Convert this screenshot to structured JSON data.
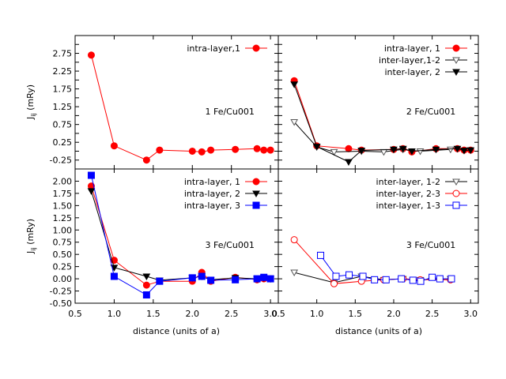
{
  "figure": {
    "xlabel": "distance (units of a)",
    "ylabel_main": "J",
    "ylabel_sub": "ij",
    "ylabel_units": " (mRy)"
  },
  "chart_data": [
    {
      "type": "line",
      "panel": "top-left",
      "annotation": "1 Fe/Cu001",
      "xlim": [
        0.5,
        3.1
      ],
      "ylim": [
        -0.5,
        3.25
      ],
      "yticks": [
        "2.75",
        "2.25",
        "1.75",
        "1.25",
        "0.75",
        "0.25",
        "-0.25"
      ],
      "series": [
        {
          "name": "intra-layer,1",
          "color": "#ff0000",
          "marker": "circle-filled",
          "x": [
            0.707,
            1.0,
            1.414,
            1.581,
            2.0,
            2.121,
            2.236,
            2.55,
            2.828,
            2.915,
            3.0
          ],
          "y": [
            2.7,
            0.15,
            -0.25,
            0.03,
            0.0,
            -0.02,
            0.03,
            0.05,
            0.07,
            0.03,
            0.03
          ]
        }
      ]
    },
    {
      "type": "line",
      "panel": "top-right",
      "annotation": "2 Fe/Cu001",
      "xlim": [
        0.5,
        3.1
      ],
      "ylim": [
        -0.5,
        3.25
      ],
      "series": [
        {
          "name": "intra-layer, 1",
          "color": "#ff0000",
          "marker": "circle-filled",
          "x": [
            0.707,
            1.0,
            1.414,
            1.581,
            2.0,
            2.121,
            2.236,
            2.55,
            2.828,
            2.915,
            3.0
          ],
          "y": [
            1.98,
            0.15,
            0.07,
            0.03,
            0.05,
            0.07,
            -0.02,
            0.07,
            0.07,
            0.03,
            0.03
          ]
        },
        {
          "name": "inter-layer,1-2",
          "color": "#000000",
          "marker": "triangle-down-open",
          "x": [
            0.707,
            1.0,
            1.225,
            1.581,
            1.871,
            2.121,
            2.345,
            2.739
          ],
          "y": [
            0.82,
            0.12,
            -0.02,
            0.0,
            -0.02,
            0.05,
            0.0,
            0.05
          ]
        },
        {
          "name": "inter-layer, 2",
          "color": "#000000",
          "marker": "triangle-down-filled",
          "x": [
            0.707,
            1.0,
            1.414,
            1.581,
            2.0,
            2.121,
            2.236,
            2.55,
            2.828,
            2.915,
            3.0
          ],
          "y": [
            1.88,
            0.13,
            -0.3,
            0.02,
            0.05,
            0.07,
            0.0,
            0.05,
            0.07,
            0.02,
            0.03
          ]
        }
      ]
    },
    {
      "type": "line",
      "panel": "bottom-left",
      "annotation": "3 Fe/Cu001",
      "xlim": [
        0.5,
        3.1
      ],
      "ylim": [
        -0.5,
        2.25
      ],
      "xticks": [
        "0.5",
        "1.0",
        "1.5",
        "2.0",
        "2.5",
        "3.0"
      ],
      "yticks": [
        "2.00",
        "1.75",
        "1.50",
        "1.25",
        "1.00",
        "0.75",
        "0.50",
        "0.25",
        "0.00",
        "-0.25",
        "-0.50"
      ],
      "series": [
        {
          "name": "intra-layer, 1",
          "color": "#ff0000",
          "marker": "circle-filled",
          "x": [
            0.707,
            1.0,
            1.414,
            1.581,
            2.0,
            2.121,
            2.236,
            2.55,
            2.828,
            2.915,
            3.0
          ],
          "y": [
            1.9,
            0.38,
            -0.13,
            -0.05,
            -0.05,
            0.13,
            -0.05,
            0.03,
            -0.02,
            0.0,
            0.0
          ]
        },
        {
          "name": "intra-layer, 2",
          "color": "#000000",
          "marker": "triangle-down-filled",
          "x": [
            0.707,
            1.0,
            1.414,
            1.581,
            2.0,
            2.121,
            2.236,
            2.55,
            2.828,
            2.915,
            3.0
          ],
          "y": [
            1.8,
            0.23,
            0.05,
            -0.03,
            0.02,
            0.05,
            -0.02,
            0.02,
            0.0,
            0.02,
            0.0
          ]
        },
        {
          "name": "intra-layer, 3",
          "color": "#0000ff",
          "marker": "square-filled",
          "x": [
            0.707,
            1.0,
            1.414,
            1.581,
            2.0,
            2.121,
            2.236,
            2.55,
            2.828,
            2.915,
            3.0
          ],
          "y": [
            2.12,
            0.05,
            -0.33,
            -0.05,
            0.02,
            0.05,
            -0.03,
            -0.02,
            0.0,
            0.03,
            0.0
          ]
        }
      ]
    },
    {
      "type": "line",
      "panel": "bottom-right",
      "annotation": "3 Fe/Cu001",
      "xlim": [
        0.5,
        3.1
      ],
      "ylim": [
        -0.5,
        2.25
      ],
      "xticks": [
        "0.5",
        "1.0",
        "1.5",
        "2.0",
        "2.5",
        "3.0"
      ],
      "series": [
        {
          "name": "inter-layer, 1-2",
          "color": "#000000",
          "marker": "triangle-down-open",
          "x": [
            0.707,
            1.225,
            1.581,
            1.871,
            2.121,
            2.345,
            2.739
          ],
          "y": [
            0.13,
            -0.08,
            0.05,
            -0.02,
            0.0,
            -0.02,
            0.0
          ]
        },
        {
          "name": "inter-layer, 2-3",
          "color": "#ff0000",
          "marker": "circle-open",
          "x": [
            0.707,
            1.225,
            1.581,
            1.871,
            2.121,
            2.345,
            2.739
          ],
          "y": [
            0.8,
            -0.1,
            -0.05,
            -0.02,
            0.0,
            -0.02,
            -0.02
          ]
        },
        {
          "name": "inter-layer, 1-3",
          "color": "#0000ff",
          "marker": "square-open",
          "x": [
            1.05,
            1.25,
            1.42,
            1.6,
            1.75,
            1.9,
            2.1,
            2.25,
            2.35,
            2.5,
            2.6,
            2.75
          ],
          "y": [
            0.48,
            0.05,
            0.08,
            0.05,
            -0.02,
            -0.02,
            0.0,
            -0.03,
            -0.05,
            0.03,
            0.0,
            0.0
          ]
        }
      ]
    }
  ]
}
